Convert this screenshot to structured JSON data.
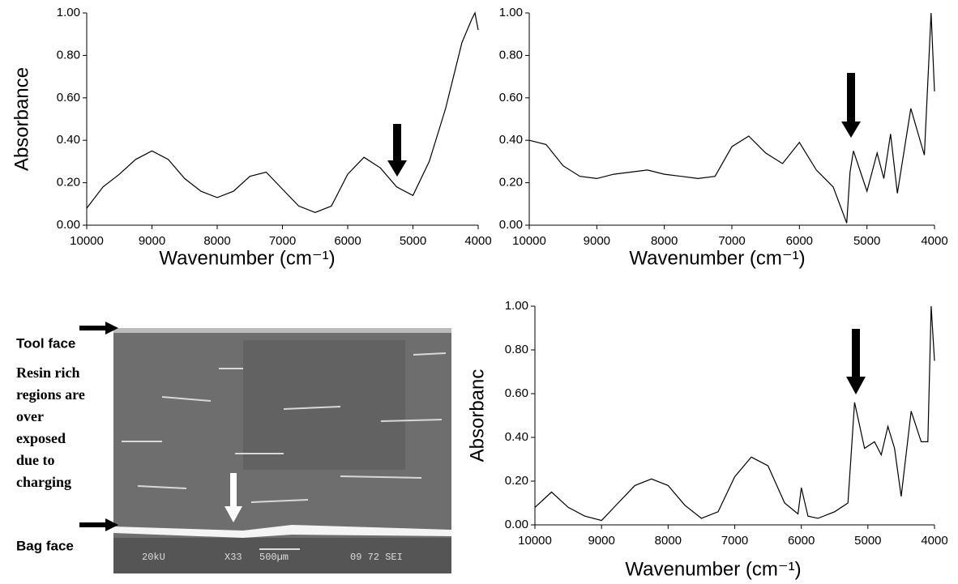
{
  "chart_data": [
    {
      "type": "line",
      "ylabel": "Absorbance",
      "xlabel": "Wavenumber (cm⁻¹)",
      "x": [
        10000,
        9750,
        9500,
        9250,
        9000,
        8750,
        8500,
        8250,
        8000,
        7750,
        7500,
        7250,
        7000,
        6750,
        6500,
        6250,
        6000,
        5750,
        5500,
        5250,
        5000,
        4750,
        4500,
        4250,
        4100,
        4050,
        4000
      ],
      "series": [
        {
          "color": "#000000",
          "values": [
            0.08,
            0.18,
            0.24,
            0.31,
            0.35,
            0.31,
            0.22,
            0.16,
            0.13,
            0.16,
            0.23,
            0.25,
            0.17,
            0.09,
            0.06,
            0.09,
            0.24,
            0.32,
            0.27,
            0.18,
            0.14,
            0.3,
            0.55,
            0.86,
            0.97,
            1.0,
            0.92
          ]
        }
      ],
      "xlim": [
        10000,
        4000
      ],
      "xticks": [
        10000,
        9000,
        8000,
        7000,
        6000,
        5000,
        4000
      ],
      "ylim": [
        0,
        1
      ],
      "yticks": [
        {
          "value": 0,
          "label": "0.00"
        },
        {
          "value": 0.2,
          "label": "0.20"
        },
        {
          "value": 0.4,
          "label": "0.40"
        },
        {
          "value": 0.6,
          "label": "0.60"
        },
        {
          "value": 0.8,
          "label": "0.80"
        },
        {
          "value": 1,
          "label": "1.00"
        }
      ],
      "grid": false
    },
    {
      "type": "line",
      "xlabel": "Wavenumber (cm⁻¹)",
      "x": [
        10000,
        9750,
        9500,
        9250,
        9000,
        8750,
        8500,
        8250,
        8000,
        7750,
        7500,
        7250,
        7000,
        6750,
        6500,
        6250,
        6000,
        5750,
        5500,
        5300,
        5250,
        5200,
        5000,
        4850,
        4750,
        4650,
        4550,
        4350,
        4150,
        4050,
        4000
      ],
      "series": [
        {
          "color": "#000000",
          "values": [
            0.4,
            0.38,
            0.28,
            0.23,
            0.22,
            0.24,
            0.25,
            0.26,
            0.24,
            0.23,
            0.22,
            0.23,
            0.37,
            0.42,
            0.34,
            0.29,
            0.39,
            0.26,
            0.18,
            0.01,
            0.25,
            0.35,
            0.16,
            0.34,
            0.22,
            0.43,
            0.15,
            0.55,
            0.33,
            1.0,
            0.63
          ]
        }
      ],
      "xlim": [
        10000,
        4000
      ],
      "xticks": [
        10000,
        9000,
        8000,
        7000,
        6000,
        5000,
        4000
      ],
      "ylim": [
        0,
        1
      ],
      "yticks": [
        {
          "value": 0,
          "label": "0.00"
        },
        {
          "value": 0.2,
          "label": "0.20"
        },
        {
          "value": 0.4,
          "label": "0.40"
        },
        {
          "value": 0.6,
          "label": "0.60"
        },
        {
          "value": 0.8,
          "label": "0.80"
        },
        {
          "value": 1,
          "label": "1.00"
        }
      ],
      "grid": false
    },
    {
      "type": "line",
      "ylabel": "Absorbanc",
      "xlabel": "Wavenumber (cm⁻¹)",
      "x": [
        10000,
        9750,
        9500,
        9250,
        9000,
        8750,
        8500,
        8250,
        8000,
        7750,
        7500,
        7250,
        7000,
        6750,
        6500,
        6250,
        6050,
        6000,
        5900,
        5750,
        5500,
        5300,
        5200,
        5050,
        4900,
        4800,
        4700,
        4600,
        4500,
        4350,
        4200,
        4100,
        4050,
        4000
      ],
      "series": [
        {
          "color": "#000000",
          "values": [
            0.08,
            0.15,
            0.08,
            0.04,
            0.02,
            0.1,
            0.18,
            0.21,
            0.18,
            0.09,
            0.03,
            0.06,
            0.22,
            0.31,
            0.27,
            0.1,
            0.05,
            0.17,
            0.04,
            0.03,
            0.06,
            0.1,
            0.56,
            0.35,
            0.38,
            0.32,
            0.45,
            0.35,
            0.13,
            0.52,
            0.38,
            0.38,
            1.0,
            0.75
          ]
        }
      ],
      "xlim": [
        10000,
        4000
      ],
      "xticks": [
        10000,
        9000,
        8000,
        7000,
        6000,
        5000,
        4000
      ],
      "ylim": [
        0,
        1
      ],
      "yticks": [
        {
          "value": 0,
          "label": "0.00"
        },
        {
          "value": 0.2,
          "label": "0.20"
        },
        {
          "value": 0.4,
          "label": "0.40"
        },
        {
          "value": 0.6,
          "label": "0.60"
        },
        {
          "value": 0.8,
          "label": "0.80"
        },
        {
          "value": 1,
          "label": "1.00"
        }
      ],
      "grid": false
    }
  ],
  "sem_panel": {
    "tool_face": "Tool face",
    "bag_face": "Bag face",
    "note_lines": [
      "Resin rich",
      "regions are",
      "over",
      "exposed",
      "due to",
      "charging"
    ],
    "overlay": [
      "20kU",
      "X33",
      "500µm",
      "09 72 SEI"
    ]
  }
}
